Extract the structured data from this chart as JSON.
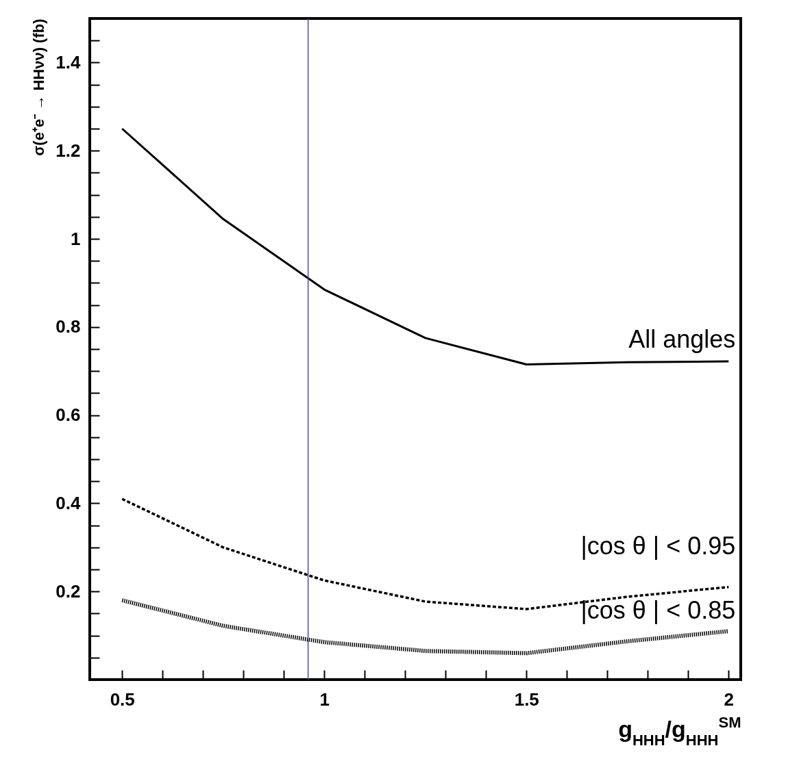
{
  "chart_data": {
    "type": "line",
    "xlabel": "g$_{HHH}$/g$_{HHH}$$^{SM}$",
    "ylabel": "σ(e⁺e⁻ → HHνν) (fb)",
    "x": [
      0.5,
      0.75,
      1.0,
      1.25,
      1.5,
      1.75,
      2.0
    ],
    "series": [
      {
        "name": "All angles",
        "color": "#000000",
        "line_style": "solid",
        "values": [
          1.25,
          1.045,
          0.885,
          0.775,
          0.715,
          0.72,
          0.722
        ]
      },
      {
        "name": "|cos θ | < 0.95",
        "color": "#000000",
        "line_style": "dashed",
        "values": [
          0.41,
          0.3,
          0.225,
          0.177,
          0.16,
          0.188,
          0.21
        ]
      },
      {
        "name": "|cos θ | < 0.85",
        "color": "#000000",
        "line_style": "dotted",
        "values": [
          0.18,
          0.122,
          0.085,
          0.065,
          0.06,
          0.087,
          0.11
        ]
      }
    ],
    "xlim": [
      0.42,
      2.03
    ],
    "ylim": [
      0,
      1.5
    ],
    "xticks": [
      0.5,
      {
        "value": 0.6,
        "label": null
      },
      {
        "value": 0.7,
        "label": null
      },
      {
        "value": 0.8,
        "label": null
      },
      {
        "value": 0.9,
        "label": null
      },
      1,
      {
        "value": 1.1,
        "label": null
      },
      {
        "value": 1.2,
        "label": null
      },
      {
        "value": 1.3,
        "label": null
      },
      {
        "value": 1.4,
        "label": null
      },
      1.5,
      {
        "value": 1.6,
        "label": null
      },
      {
        "value": 1.7,
        "label": null
      },
      {
        "value": 1.8,
        "label": null
      },
      {
        "value": 1.9,
        "label": null
      },
      2
    ],
    "yticks": [
      {
        "value": 0.05,
        "label": null
      },
      {
        "value": 0.1,
        "label": null
      },
      {
        "value": 0.15,
        "label": null
      },
      0.2,
      {
        "value": 0.25,
        "label": null
      },
      {
        "value": 0.3,
        "label": null
      },
      {
        "value": 0.35,
        "label": null
      },
      0.4,
      {
        "value": 0.45,
        "label": null
      },
      {
        "value": 0.5,
        "label": null
      },
      {
        "value": 0.55,
        "label": null
      },
      0.6,
      {
        "value": 0.65,
        "label": null
      },
      {
        "value": 0.7,
        "label": null
      },
      {
        "value": 0.75,
        "label": null
      },
      0.8,
      {
        "value": 0.85,
        "label": null
      },
      {
        "value": 0.9,
        "label": null
      },
      {
        "value": 0.95,
        "label": null
      },
      1,
      {
        "value": 1.05,
        "label": null
      },
      {
        "value": 1.1,
        "label": null
      },
      {
        "value": 1.15,
        "label": null
      },
      1.2,
      {
        "value": 1.25,
        "label": null
      },
      {
        "value": 1.3,
        "label": null
      },
      {
        "value": 1.35,
        "label": null
      },
      1.4,
      {
        "value": 1.45,
        "label": null
      }
    ],
    "ref_lines": [
      {
        "axis": "x",
        "value": 0.96,
        "label": null,
        "color": "#4050a0"
      }
    ],
    "grid": false,
    "marker": "none"
  }
}
